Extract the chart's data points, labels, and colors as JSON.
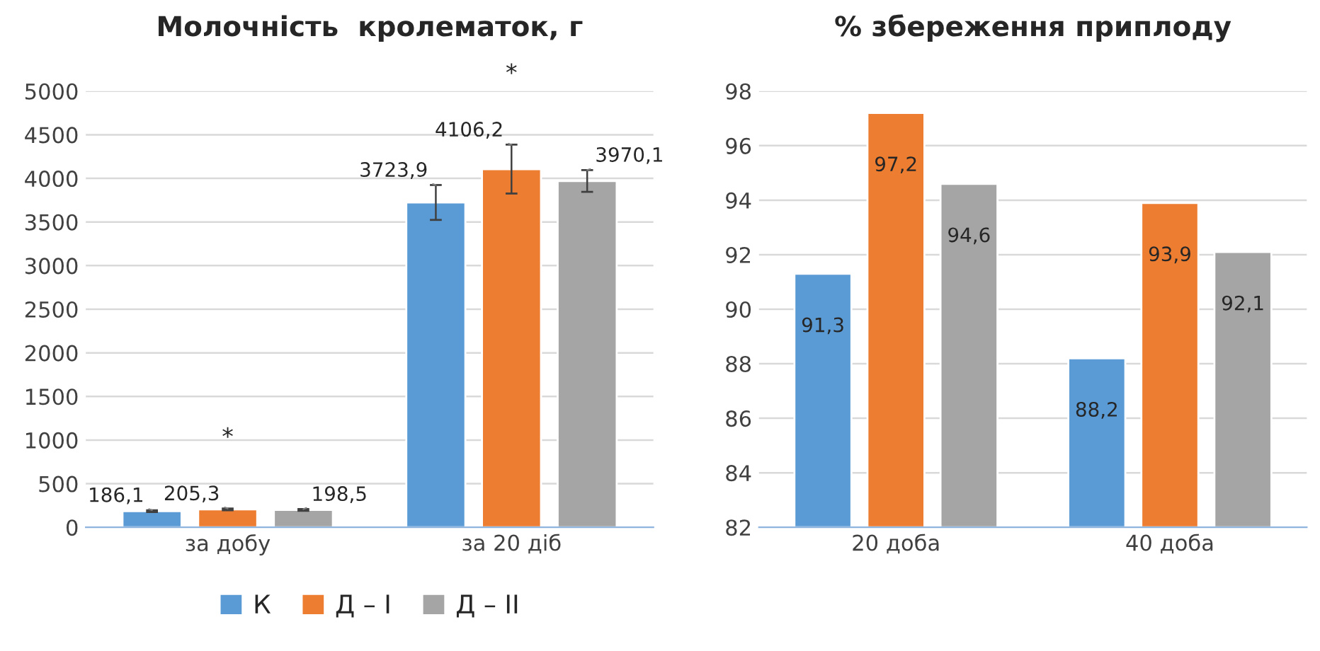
{
  "chart_data": [
    {
      "type": "bar",
      "title": "Молочність  кролематок, г",
      "categories": [
        "за добу",
        "за 20 діб"
      ],
      "series": [
        {
          "name": "К",
          "color": "#5b9bd5",
          "values": [
            186.1,
            3723.9
          ],
          "errors": [
            10,
            200
          ],
          "value_labels": [
            "186,1",
            "3723,9"
          ]
        },
        {
          "name": "Д – I",
          "color": "#ed7d31",
          "values": [
            205.3,
            4106.2
          ],
          "errors": [
            10,
            280
          ],
          "value_labels": [
            "205,3",
            "4106,2"
          ]
        },
        {
          "name": "Д – II",
          "color": "#a5a5a5",
          "values": [
            198.5,
            3970.1
          ],
          "errors": [
            10,
            125
          ],
          "value_labels": [
            "198,5",
            "3970,1"
          ]
        }
      ],
      "annotations": [
        "*",
        "*"
      ],
      "ylim": [
        0,
        5000
      ],
      "yticks": [
        0,
        500,
        1000,
        1500,
        2000,
        2500,
        3000,
        3500,
        4000,
        4500,
        5000
      ],
      "grid": "y",
      "legend": "bottom"
    },
    {
      "type": "bar",
      "title": "% збереження приплоду",
      "categories": [
        "20 доба",
        "40 доба"
      ],
      "series": [
        {
          "color": "#5b9bd5",
          "values": [
            91.3,
            88.2
          ],
          "value_labels": [
            "91,3",
            "88,2"
          ]
        },
        {
          "color": "#ed7d31",
          "values": [
            97.2,
            93.9
          ],
          "value_labels": [
            "97,2",
            "93,9"
          ]
        },
        {
          "color": "#a5a5a5",
          "values": [
            94.6,
            92.1
          ],
          "value_labels": [
            "94,6",
            "92,1"
          ]
        }
      ],
      "ylim": [
        82,
        98
      ],
      "yticks": [
        82,
        84,
        86,
        88,
        90,
        92,
        94,
        96,
        98
      ],
      "grid": "y"
    }
  ]
}
